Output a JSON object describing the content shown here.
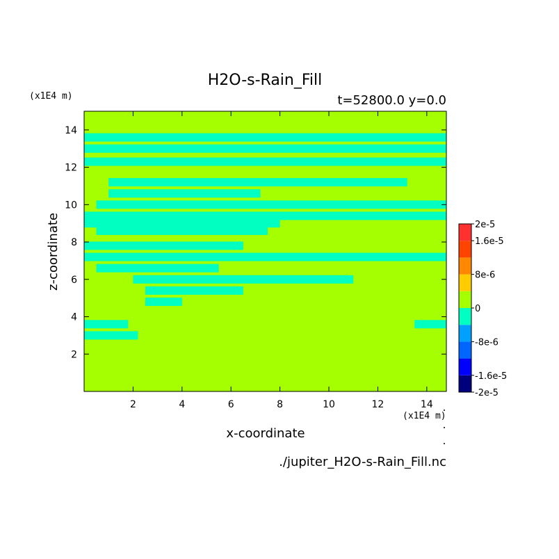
{
  "chart_data": {
    "type": "heatmap",
    "title": "H2O-s-Rain_Fill",
    "subtitle": "t=52800.0 y=0.0",
    "xlabel": "x-coordinate",
    "ylabel": "z-coordinate",
    "x_unit_label": "(x1E4 m)",
    "y_unit_label": "(x1E4 m)",
    "footer": "./jupiter_H2O-s-Rain_Fill.nc",
    "xlim": [
      0,
      14.8
    ],
    "ylim": [
      0,
      15
    ],
    "x_ticks": [
      2,
      4,
      6,
      8,
      10,
      12,
      14
    ],
    "y_ticks": [
      2,
      4,
      6,
      8,
      10,
      12,
      14
    ],
    "background_value": 0,
    "background_color": "#a5ff00",
    "colorbar": {
      "levels": [
        -2e-05,
        -1.6e-05,
        -1.2e-05,
        -8e-06,
        -4e-06,
        0,
        4e-06,
        8e-06,
        1.2e-05,
        1.6e-05,
        2e-05
      ],
      "colors": [
        "#00007f",
        "#0000ff",
        "#0066ff",
        "#00a0ff",
        "#00ffc0",
        "#a5ff00",
        "#ffcc00",
        "#ff8800",
        "#ff4400",
        "#ff3030"
      ],
      "tick_labels": [
        {
          "value": 2e-05,
          "text": "2e-5"
        },
        {
          "value": 1.6e-05,
          "text": "1.6e-5"
        },
        {
          "value": 8e-06,
          "text": "8e-6"
        },
        {
          "value": 0,
          "text": "0"
        },
        {
          "value": -8e-06,
          "text": "-8e-6"
        },
        {
          "value": -1.6e-05,
          "text": "-1.6e-5"
        },
        {
          "value": -2e-05,
          "text": "-2e-5"
        }
      ]
    },
    "negative_regions": [
      {
        "band": "cyan",
        "value_range": [
          -4e-06,
          0
        ],
        "approx_segments": [
          {
            "z": 13.6,
            "x": [
              0,
              14.8
            ]
          },
          {
            "z": 13.0,
            "x": [
              0,
              14.8
            ]
          },
          {
            "z": 12.3,
            "x": [
              0,
              14.8
            ]
          },
          {
            "z": 11.2,
            "x": [
              1.0,
              13.2
            ]
          },
          {
            "z": 10.6,
            "x": [
              1.0,
              7.2
            ]
          },
          {
            "z": 10.0,
            "x": [
              0.5,
              14.8
            ]
          },
          {
            "z": 9.4,
            "x": [
              0,
              14.8
            ]
          },
          {
            "z": 9.0,
            "x": [
              0,
              8.0
            ]
          },
          {
            "z": 8.6,
            "x": [
              0.5,
              7.5
            ]
          },
          {
            "z": 7.8,
            "x": [
              0,
              6.5
            ]
          },
          {
            "z": 7.2,
            "x": [
              0,
              14.8
            ]
          },
          {
            "z": 6.6,
            "x": [
              0.5,
              5.5
            ]
          },
          {
            "z": 6.0,
            "x": [
              2.0,
              11.0
            ]
          },
          {
            "z": 5.4,
            "x": [
              2.5,
              6.5
            ]
          },
          {
            "z": 4.8,
            "x": [
              2.5,
              4.0
            ]
          },
          {
            "z": 3.6,
            "x": [
              0,
              1.8
            ]
          },
          {
            "z": 3.0,
            "x": [
              0,
              2.2
            ]
          },
          {
            "z": 3.6,
            "x": [
              13.5,
              14.8
            ]
          }
        ]
      }
    ]
  }
}
